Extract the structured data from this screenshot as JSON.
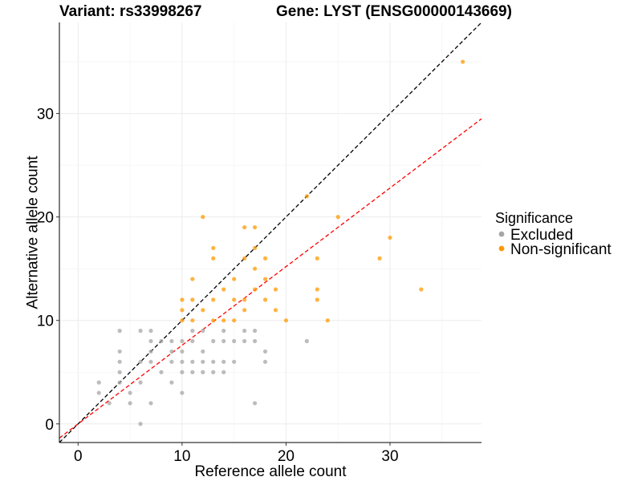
{
  "header": {
    "variant_title": "Variant: rs33998267",
    "gene_title": "Gene: LYST (ENSG00000143669)"
  },
  "chart_data": {
    "type": "scatter",
    "xlabel": "Reference allele count",
    "ylabel": "Alternative allele count",
    "xlim": [
      -1.8,
      38.8
    ],
    "ylim": [
      -1.8,
      38.8
    ],
    "x_ticks": [
      0,
      10,
      20,
      30
    ],
    "y_ticks": [
      0,
      10,
      20,
      30
    ],
    "grid": true,
    "legend": {
      "title": "Significance",
      "position": "right",
      "entries": [
        {
          "label": "Excluded",
          "color": "#a6a6a6"
        },
        {
          "label": "Non-significant",
          "color": "#ff9900"
        }
      ]
    },
    "reference_lines": [
      {
        "slope": 1.0,
        "intercept": 0,
        "color": "#000000",
        "style": "dashed"
      },
      {
        "slope": 0.76,
        "intercept": 0,
        "color": "#ff0000",
        "style": "dashed"
      }
    ],
    "series": [
      {
        "name": "Excluded",
        "color": "#a6a6a6",
        "points": [
          [
            2,
            4
          ],
          [
            2,
            3
          ],
          [
            3,
            2
          ],
          [
            4,
            9
          ],
          [
            4,
            7
          ],
          [
            4,
            6
          ],
          [
            4,
            5
          ],
          [
            4,
            4
          ],
          [
            5,
            2
          ],
          [
            5,
            3
          ],
          [
            6,
            9
          ],
          [
            6,
            6
          ],
          [
            6,
            4
          ],
          [
            6,
            0
          ],
          [
            7,
            9
          ],
          [
            7,
            8
          ],
          [
            7,
            7
          ],
          [
            7,
            6
          ],
          [
            7,
            2
          ],
          [
            8,
            8
          ],
          [
            8,
            5
          ],
          [
            9,
            8
          ],
          [
            9,
            7
          ],
          [
            9,
            6
          ],
          [
            9,
            4
          ],
          [
            10,
            8
          ],
          [
            10,
            7
          ],
          [
            10,
            6
          ],
          [
            10,
            5
          ],
          [
            10,
            3
          ],
          [
            11,
            9
          ],
          [
            11,
            8
          ],
          [
            11,
            6
          ],
          [
            11,
            5
          ],
          [
            12,
            9
          ],
          [
            12,
            7
          ],
          [
            12,
            6
          ],
          [
            12,
            5
          ],
          [
            13,
            8
          ],
          [
            13,
            6
          ],
          [
            13,
            5
          ],
          [
            14,
            9
          ],
          [
            14,
            8
          ],
          [
            14,
            6
          ],
          [
            14,
            5
          ],
          [
            15,
            8
          ],
          [
            15,
            6
          ],
          [
            16,
            9
          ],
          [
            16,
            8
          ],
          [
            17,
            9
          ],
          [
            17,
            8
          ],
          [
            17,
            2
          ],
          [
            18,
            7
          ],
          [
            18,
            6
          ],
          [
            22,
            8
          ]
        ]
      },
      {
        "name": "Non-significant",
        "color": "#ff9900",
        "points": [
          [
            10,
            12
          ],
          [
            10,
            11
          ],
          [
            10,
            10
          ],
          [
            11,
            14
          ],
          [
            11,
            12
          ],
          [
            11,
            10
          ],
          [
            12,
            20
          ],
          [
            12,
            11
          ],
          [
            13,
            17
          ],
          [
            13,
            16
          ],
          [
            13,
            12
          ],
          [
            13,
            10
          ],
          [
            14,
            13
          ],
          [
            14,
            10
          ],
          [
            15,
            14
          ],
          [
            15,
            12
          ],
          [
            15,
            10
          ],
          [
            16,
            19
          ],
          [
            16,
            16
          ],
          [
            16,
            12
          ],
          [
            16,
            11
          ],
          [
            17,
            19
          ],
          [
            17,
            17
          ],
          [
            17,
            15
          ],
          [
            17,
            13
          ],
          [
            18,
            16
          ],
          [
            18,
            14
          ],
          [
            18,
            12
          ],
          [
            19,
            13
          ],
          [
            19,
            11
          ],
          [
            20,
            10
          ],
          [
            22,
            22
          ],
          [
            23,
            16
          ],
          [
            23,
            13
          ],
          [
            23,
            12
          ],
          [
            24,
            10
          ],
          [
            25,
            20
          ],
          [
            29,
            16
          ],
          [
            30,
            18
          ],
          [
            33,
            13
          ],
          [
            37,
            35
          ]
        ]
      }
    ]
  }
}
